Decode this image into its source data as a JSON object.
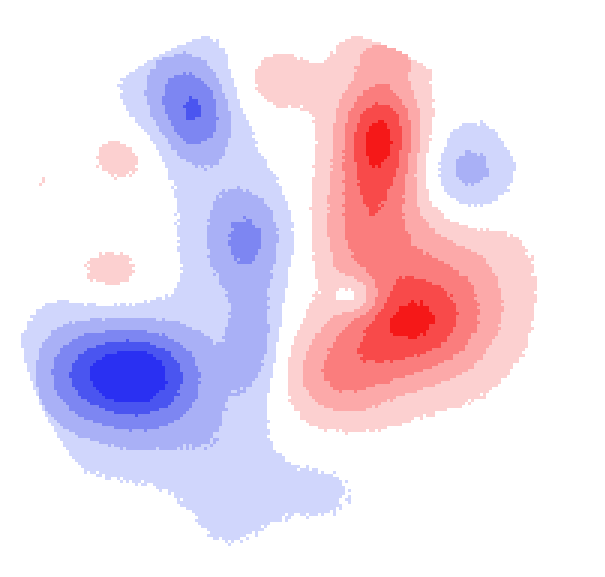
{
  "chart_data": {
    "type": "heatmap",
    "title": "",
    "xlabel": "",
    "ylabel": "",
    "legend": "none",
    "grid": false,
    "color_scale": {
      "negative": [
        "#d0d6fc",
        "#a9b0f6",
        "#7d86f2",
        "#4a55f0",
        "#2a30f2"
      ],
      "positive": [
        "#fcd0d0",
        "#fca9a9",
        "#fa7d7d",
        "#f84a4a",
        "#f51818"
      ],
      "thresholds": [
        0.14,
        0.36,
        0.58,
        0.8,
        1.0
      ]
    },
    "head_outline": {
      "cx": 0.465,
      "cy": 0.505,
      "rx": 0.44,
      "ry": 0.465
    },
    "sources": [
      {
        "x": 0.625,
        "y": 0.23,
        "amp": 1.0,
        "sx": 0.05,
        "sy": 0.075
      },
      {
        "x": 0.67,
        "y": 0.56,
        "amp": 0.7,
        "sx": 0.08,
        "sy": 0.065
      },
      {
        "x": 0.6,
        "y": 0.39,
        "amp": 0.55,
        "sx": 0.06,
        "sy": 0.08
      },
      {
        "x": 0.74,
        "y": 0.49,
        "amp": 0.45,
        "sx": 0.09,
        "sy": 0.12
      },
      {
        "x": 0.56,
        "y": 0.65,
        "amp": 0.55,
        "sx": 0.07,
        "sy": 0.06
      },
      {
        "x": 0.64,
        "y": 0.09,
        "amp": 0.3,
        "sx": 0.05,
        "sy": 0.03
      },
      {
        "x": 0.45,
        "y": 0.14,
        "amp": 0.3,
        "sx": 0.055,
        "sy": 0.045
      },
      {
        "x": 0.2,
        "y": 0.27,
        "amp": 0.25,
        "sx": 0.04,
        "sy": 0.035
      },
      {
        "x": 0.18,
        "y": 0.47,
        "amp": 0.25,
        "sx": 0.05,
        "sy": 0.035
      },
      {
        "x": 0.055,
        "y": 0.31,
        "amp": 0.18,
        "sx": 0.02,
        "sy": 0.025
      },
      {
        "x": 0.585,
        "y": 0.51,
        "amp": -0.45,
        "sx": 0.03,
        "sy": 0.025
      },
      {
        "x": 0.77,
        "y": 0.3,
        "amp": -0.55,
        "sx": 0.055,
        "sy": 0.06
      },
      {
        "x": 0.32,
        "y": 0.2,
        "amp": -0.55,
        "sx": 0.045,
        "sy": 0.06
      },
      {
        "x": 0.215,
        "y": 0.64,
        "amp": -1.0,
        "sx": 0.075,
        "sy": 0.06
      },
      {
        "x": 0.41,
        "y": 0.41,
        "amp": -0.45,
        "sx": 0.05,
        "sy": 0.06
      },
      {
        "x": 0.42,
        "y": 0.59,
        "amp": -0.4,
        "sx": 0.03,
        "sy": 0.07
      },
      {
        "x": 0.37,
        "y": 0.42,
        "amp": -0.22,
        "sx": 0.07,
        "sy": 0.2
      },
      {
        "x": 0.23,
        "y": 0.72,
        "amp": -0.35,
        "sx": 0.1,
        "sy": 0.08
      },
      {
        "x": 0.38,
        "y": 0.84,
        "amp": -0.22,
        "sx": 0.06,
        "sy": 0.09
      },
      {
        "x": 0.53,
        "y": 0.85,
        "amp": -0.18,
        "sx": 0.06,
        "sy": 0.05
      },
      {
        "x": 0.28,
        "y": 0.14,
        "amp": -0.35,
        "sx": 0.06,
        "sy": 0.06
      },
      {
        "x": 0.1,
        "y": 0.63,
        "amp": -0.3,
        "sx": 0.05,
        "sy": 0.08
      }
    ]
  }
}
